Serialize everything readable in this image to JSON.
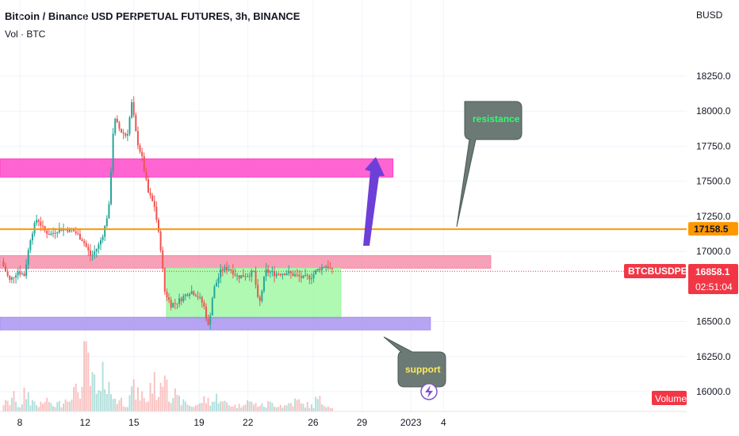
{
  "header": {
    "title": "Bitcoin / Binance USD PERPETUAL FUTURES, 3h, BINANCE",
    "volume_label": "Vol · BTC"
  },
  "chart_data": {
    "type": "candlestick",
    "symbol": "BTCBUSDPERP",
    "currency_label": "BUSD",
    "ylim": [
      15950,
      18480
    ],
    "y_ticks": [
      "18250.0",
      "18000.0",
      "17750.0",
      "17500.0",
      "17250.0",
      "17000.0",
      "16500.0",
      "16250.0",
      "16000.0"
    ],
    "x_ticks": [
      {
        "label": "8",
        "day": 8
      },
      {
        "label": "12",
        "day": 12
      },
      {
        "label": "15",
        "day": 15
      },
      {
        "label": "19",
        "day": 19
      },
      {
        "label": "22",
        "day": 22
      },
      {
        "label": "26",
        "day": 26
      },
      {
        "label": "29",
        "day": 29
      },
      {
        "label": "2023",
        "day": 32
      },
      {
        "label": "4",
        "day": 34
      }
    ],
    "price_path": [
      [
        7.0,
        16930
      ],
      [
        7.5,
        16790
      ],
      [
        8.0,
        16860
      ],
      [
        8.4,
        16830
      ],
      [
        8.8,
        17110
      ],
      [
        9.2,
        17240
      ],
      [
        9.6,
        17150
      ],
      [
        10.0,
        17120
      ],
      [
        10.5,
        17160
      ],
      [
        11.0,
        17160
      ],
      [
        11.5,
        17140
      ],
      [
        12.0,
        17080
      ],
      [
        12.5,
        16960
      ],
      [
        13.0,
        17050
      ],
      [
        13.3,
        17150
      ],
      [
        13.6,
        17320
      ],
      [
        13.9,
        17950
      ],
      [
        14.3,
        17860
      ],
      [
        14.7,
        17820
      ],
      [
        15.0,
        18060
      ],
      [
        15.3,
        17800
      ],
      [
        15.6,
        17680
      ],
      [
        16.0,
        17420
      ],
      [
        16.4,
        17320
      ],
      [
        16.8,
        17000
      ],
      [
        17.0,
        16720
      ],
      [
        17.4,
        16620
      ],
      [
        17.8,
        16640
      ],
      [
        18.2,
        16680
      ],
      [
        18.6,
        16720
      ],
      [
        19.0,
        16690
      ],
      [
        19.4,
        16620
      ],
      [
        19.7,
        16460
      ],
      [
        20.0,
        16720
      ],
      [
        20.5,
        16870
      ],
      [
        21.0,
        16880
      ],
      [
        21.5,
        16820
      ],
      [
        22.0,
        16830
      ],
      [
        22.5,
        16850
      ],
      [
        22.8,
        16600
      ],
      [
        23.2,
        16860
      ],
      [
        23.8,
        16840
      ],
      [
        24.5,
        16850
      ],
      [
        25.0,
        16830
      ],
      [
        25.5,
        16810
      ],
      [
        26.0,
        16820
      ],
      [
        26.5,
        16880
      ],
      [
        27.0,
        16900
      ],
      [
        27.3,
        16858
      ]
    ],
    "volumes": [
      0.15,
      0.25,
      0.1,
      0.3,
      0.18,
      0.12,
      0.2,
      0.1,
      0.14,
      0.22,
      0.35,
      0.4,
      0.9,
      0.5,
      0.3,
      0.6,
      0.25,
      0.2,
      0.15,
      0.4,
      0.3,
      0.2,
      0.5,
      0.35,
      0.8,
      0.3,
      0.2,
      0.15,
      0.1,
      0.12,
      0.2,
      0.18,
      0.25,
      0.15,
      0.12,
      0.1,
      0.2,
      0.15,
      0.12,
      0.1,
      0.14,
      0.12,
      0.1,
      0.15,
      0.18,
      0.12,
      0.1,
      0.2,
      0.15,
      0.1
    ],
    "horizontal_line": {
      "value": 17158.5,
      "label": "17158.5",
      "color": "#ff9800"
    },
    "current_price": {
      "symbol": "BTCBUSDPERP",
      "value": "16858.1",
      "countdown": "02:51:04",
      "color": "#f23645"
    },
    "zones": [
      {
        "name": "upper-magenta-zone",
        "y0": 17530,
        "y1": 17660,
        "x0": 6.0,
        "x1": 30.9,
        "color": "#ff3ec7"
      },
      {
        "name": "pink-zone",
        "y0": 16880,
        "y1": 16970,
        "x0": 6.0,
        "x1": 36.9,
        "color": "#f48aa6"
      },
      {
        "name": "green-range",
        "y0": 16520,
        "y1": 16880,
        "x0": 17.0,
        "x1": 27.7,
        "color": "#9cf7a0"
      },
      {
        "name": "purple-zone",
        "y0": 16440,
        "y1": 16530,
        "x0": 6.0,
        "x1": 33.2,
        "color": "#a58ff0"
      }
    ],
    "annotations": [
      {
        "name": "resistance-callout",
        "text": "resistance",
        "color": "#2dff6e"
      },
      {
        "name": "support-callout",
        "text": "support",
        "color": "#ffe95c"
      }
    ],
    "volume_badge": "Volume",
    "colors": {
      "up": "#26a69a",
      "down": "#ef5350",
      "arrow": "#6e3fd8",
      "callout_bg": "#6b7a75"
    }
  }
}
